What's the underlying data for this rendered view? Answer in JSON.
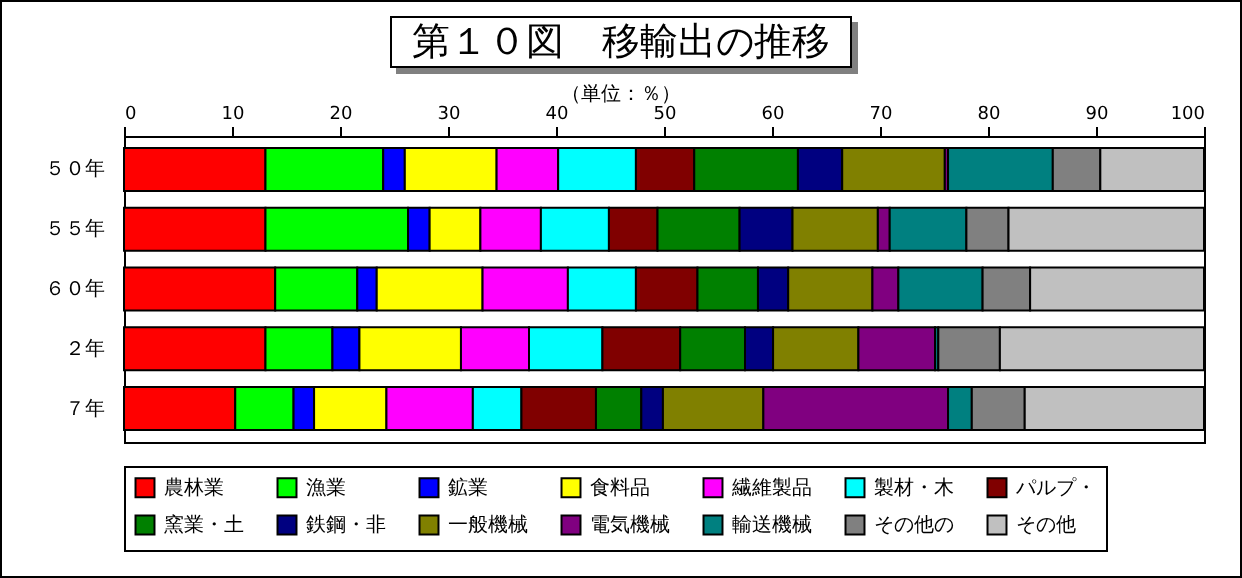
{
  "chart_data": {
    "type": "bar",
    "title": "第１０図　移輸出の推移",
    "subtitle": "（単位：％）",
    "orientation": "horizontal",
    "stacked": true,
    "legend": "bottom",
    "grid": false,
    "xlim": [
      0,
      100
    ],
    "xticks": [
      0,
      10,
      20,
      30,
      40,
      50,
      60,
      70,
      80,
      90,
      100
    ],
    "categories": [
      "５０年",
      "５５年",
      "６０年",
      "２年",
      "７年"
    ],
    "series": [
      {
        "name": "農林業",
        "color": "#ff0000",
        "values": [
          13.1,
          13.1,
          14.0,
          13.1,
          10.3
        ]
      },
      {
        "name": "漁業",
        "color": "#00ff00",
        "values": [
          10.9,
          13.2,
          7.6,
          6.2,
          5.4
        ]
      },
      {
        "name": "鉱業",
        "color": "#0000ff",
        "values": [
          2.0,
          2.0,
          1.8,
          2.5,
          1.9
        ]
      },
      {
        "name": "食料品",
        "color": "#ffff00",
        "values": [
          8.5,
          4.7,
          9.8,
          9.4,
          6.7
        ]
      },
      {
        "name": "繊維製品",
        "color": "#ff00ff",
        "values": [
          5.7,
          5.6,
          7.9,
          6.3,
          8.0
        ]
      },
      {
        "name": "製材・木",
        "color": "#00ffff",
        "values": [
          7.2,
          6.3,
          6.3,
          6.8,
          4.5
        ]
      },
      {
        "name": "パルプ・",
        "color": "#800000",
        "values": [
          5.4,
          4.5,
          5.7,
          7.2,
          6.9
        ]
      },
      {
        "name": "窯業・土",
        "color": "#008000",
        "values": [
          9.6,
          7.6,
          5.6,
          6.0,
          4.2
        ]
      },
      {
        "name": "鉄鋼・非",
        "color": "#000080",
        "values": [
          4.1,
          4.9,
          2.8,
          2.6,
          2.0
        ]
      },
      {
        "name": "一般機械",
        "color": "#808000",
        "values": [
          9.5,
          7.9,
          7.8,
          7.9,
          9.3
        ]
      },
      {
        "name": "電気機械",
        "color": "#800080",
        "values": [
          0.3,
          1.1,
          2.4,
          7.1,
          17.1
        ]
      },
      {
        "name": "輸送機械",
        "color": "#008080",
        "values": [
          9.7,
          7.1,
          7.8,
          0.3,
          2.2
        ]
      },
      {
        "name": "その他の",
        "color": "#808080",
        "values": [
          4.4,
          3.9,
          4.4,
          5.7,
          4.9
        ]
      },
      {
        "name": "その他",
        "color": "#c0c0c0",
        "values": [
          9.6,
          18.1,
          16.1,
          18.9,
          16.6
        ]
      }
    ]
  }
}
